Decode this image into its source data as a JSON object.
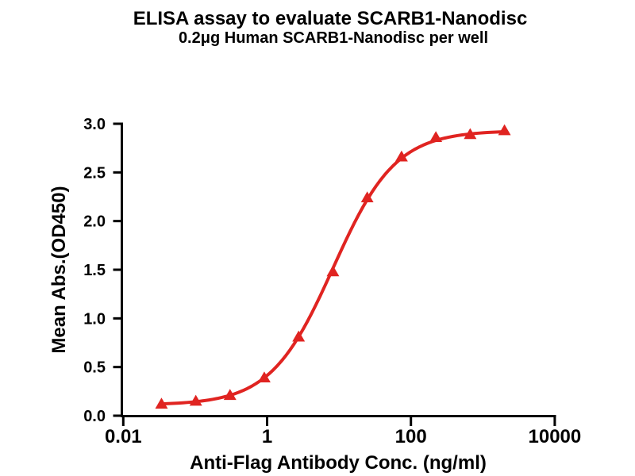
{
  "figure": {
    "title": "ELISA assay to evaluate SCARB1-Nanodisc",
    "subtitle": "0.2μg Human SCARB1-Nanodisc per well"
  },
  "colors": {
    "curve": "#e02421",
    "axis": "#000000",
    "text": "#000000",
    "background": "#ffffff"
  },
  "chart_data": {
    "type": "line",
    "title": "ELISA assay to evaluate SCARB1-Nanodisc",
    "subtitle": "0.2μg Human SCARB1-Nanodisc per well",
    "xlabel": "Anti-Flag Antibody Conc. (ng/ml)",
    "ylabel": "Mean Abs.(OD450)",
    "x_scale": "log10",
    "xlim": [
      0.01,
      10000
    ],
    "ylim": [
      0.0,
      3.0
    ],
    "grid": false,
    "legend": "none",
    "x_ticks": [
      {
        "value": 0.01,
        "label": "0.01"
      },
      {
        "value": 1,
        "label": "1"
      },
      {
        "value": 100,
        "label": "100"
      },
      {
        "value": 10000,
        "label": "10000"
      }
    ],
    "y_ticks": [
      {
        "value": 0.0,
        "label": "0.0"
      },
      {
        "value": 0.5,
        "label": "0.5"
      },
      {
        "value": 1.0,
        "label": "1.0"
      },
      {
        "value": 1.5,
        "label": "1.5"
      },
      {
        "value": 2.0,
        "label": "2.0"
      },
      {
        "value": 2.5,
        "label": "2.5"
      },
      {
        "value": 3.0,
        "label": "3.0"
      }
    ],
    "series": [
      {
        "color": "#e02421",
        "marker": "triangle-up",
        "line_width": 4,
        "points": [
          {
            "x": 0.034,
            "y": 0.11
          },
          {
            "x": 0.102,
            "y": 0.14
          },
          {
            "x": 0.305,
            "y": 0.2
          },
          {
            "x": 0.914,
            "y": 0.38
          },
          {
            "x": 2.743,
            "y": 0.8
          },
          {
            "x": 8.23,
            "y": 1.47
          },
          {
            "x": 24.69,
            "y": 2.23
          },
          {
            "x": 74.07,
            "y": 2.65
          },
          {
            "x": 222.2,
            "y": 2.85
          },
          {
            "x": 666.7,
            "y": 2.88
          },
          {
            "x": 2000,
            "y": 2.92
          }
        ],
        "fit_curve": {
          "model": "4PL",
          "bottom": 0.11,
          "top": 2.93,
          "ec50": 8.3,
          "hill": 1.0
        }
      }
    ]
  }
}
